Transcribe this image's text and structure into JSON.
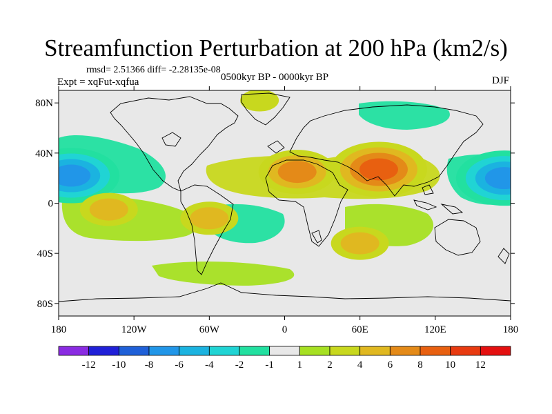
{
  "title": "Streamfunction Perturbation at 200 hPa (km2/s)",
  "stats": "rmsd= 2.51366 diff= -2.28135e-08",
  "experiment": "Expt = xqFut-xqfua",
  "period": "0500kyr BP - 0000kyr BP",
  "season": "DJF",
  "map": {
    "projection": "cylindrical equidistant",
    "lat_labels": [
      "80N",
      "40N",
      "0",
      "40S",
      "80S"
    ],
    "lon_labels": [
      "180",
      "120W",
      "60W",
      "0",
      "60E",
      "120E",
      "180"
    ],
    "lat_values": [
      80,
      40,
      0,
      -40,
      -80
    ],
    "lon_values": [
      -180,
      -120,
      -60,
      0,
      60,
      120,
      180
    ],
    "lat_range": [
      -90,
      90
    ],
    "lon_range": [
      -180,
      180
    ]
  },
  "colorbar": {
    "labels": [
      "-12",
      "-10",
      "-8",
      "-6",
      "-4",
      "-2",
      "-1",
      "1",
      "2",
      "4",
      "6",
      "8",
      "10",
      "12"
    ],
    "colors": [
      "#8a2be2",
      "#2020d8",
      "#1f60d8",
      "#2196e8",
      "#1bb3e0",
      "#20d4d4",
      "#22e0a0",
      "#e8e8e8",
      "#a6e022",
      "#c8d81e",
      "#e0b820",
      "#e48a18",
      "#e86010",
      "#e83a10",
      "#e41010"
    ]
  },
  "field_features": [
    {
      "label": "negative centre N Pacific",
      "lon": -170,
      "lat": 22,
      "level": -8
    },
    {
      "label": "positive centre S Asia",
      "lon": 75,
      "lat": 27,
      "level": 8
    },
    {
      "label": "positive band N Africa",
      "lon": 10,
      "lat": 25,
      "level": 6
    },
    {
      "label": "negative centre W Pacific",
      "lon": 175,
      "lat": 20,
      "level": -8
    },
    {
      "label": "positive centre S Pacific",
      "lon": -140,
      "lat": -5,
      "level": 4
    },
    {
      "label": "positive centre S America",
      "lon": -60,
      "lat": -12,
      "level": 4
    },
    {
      "label": "positive centre Arctic",
      "lon": -20,
      "lat": 82,
      "level": 2
    },
    {
      "label": "positive centre S Indian Ocean",
      "lon": 60,
      "lat": -32,
      "level": 4
    }
  ]
}
